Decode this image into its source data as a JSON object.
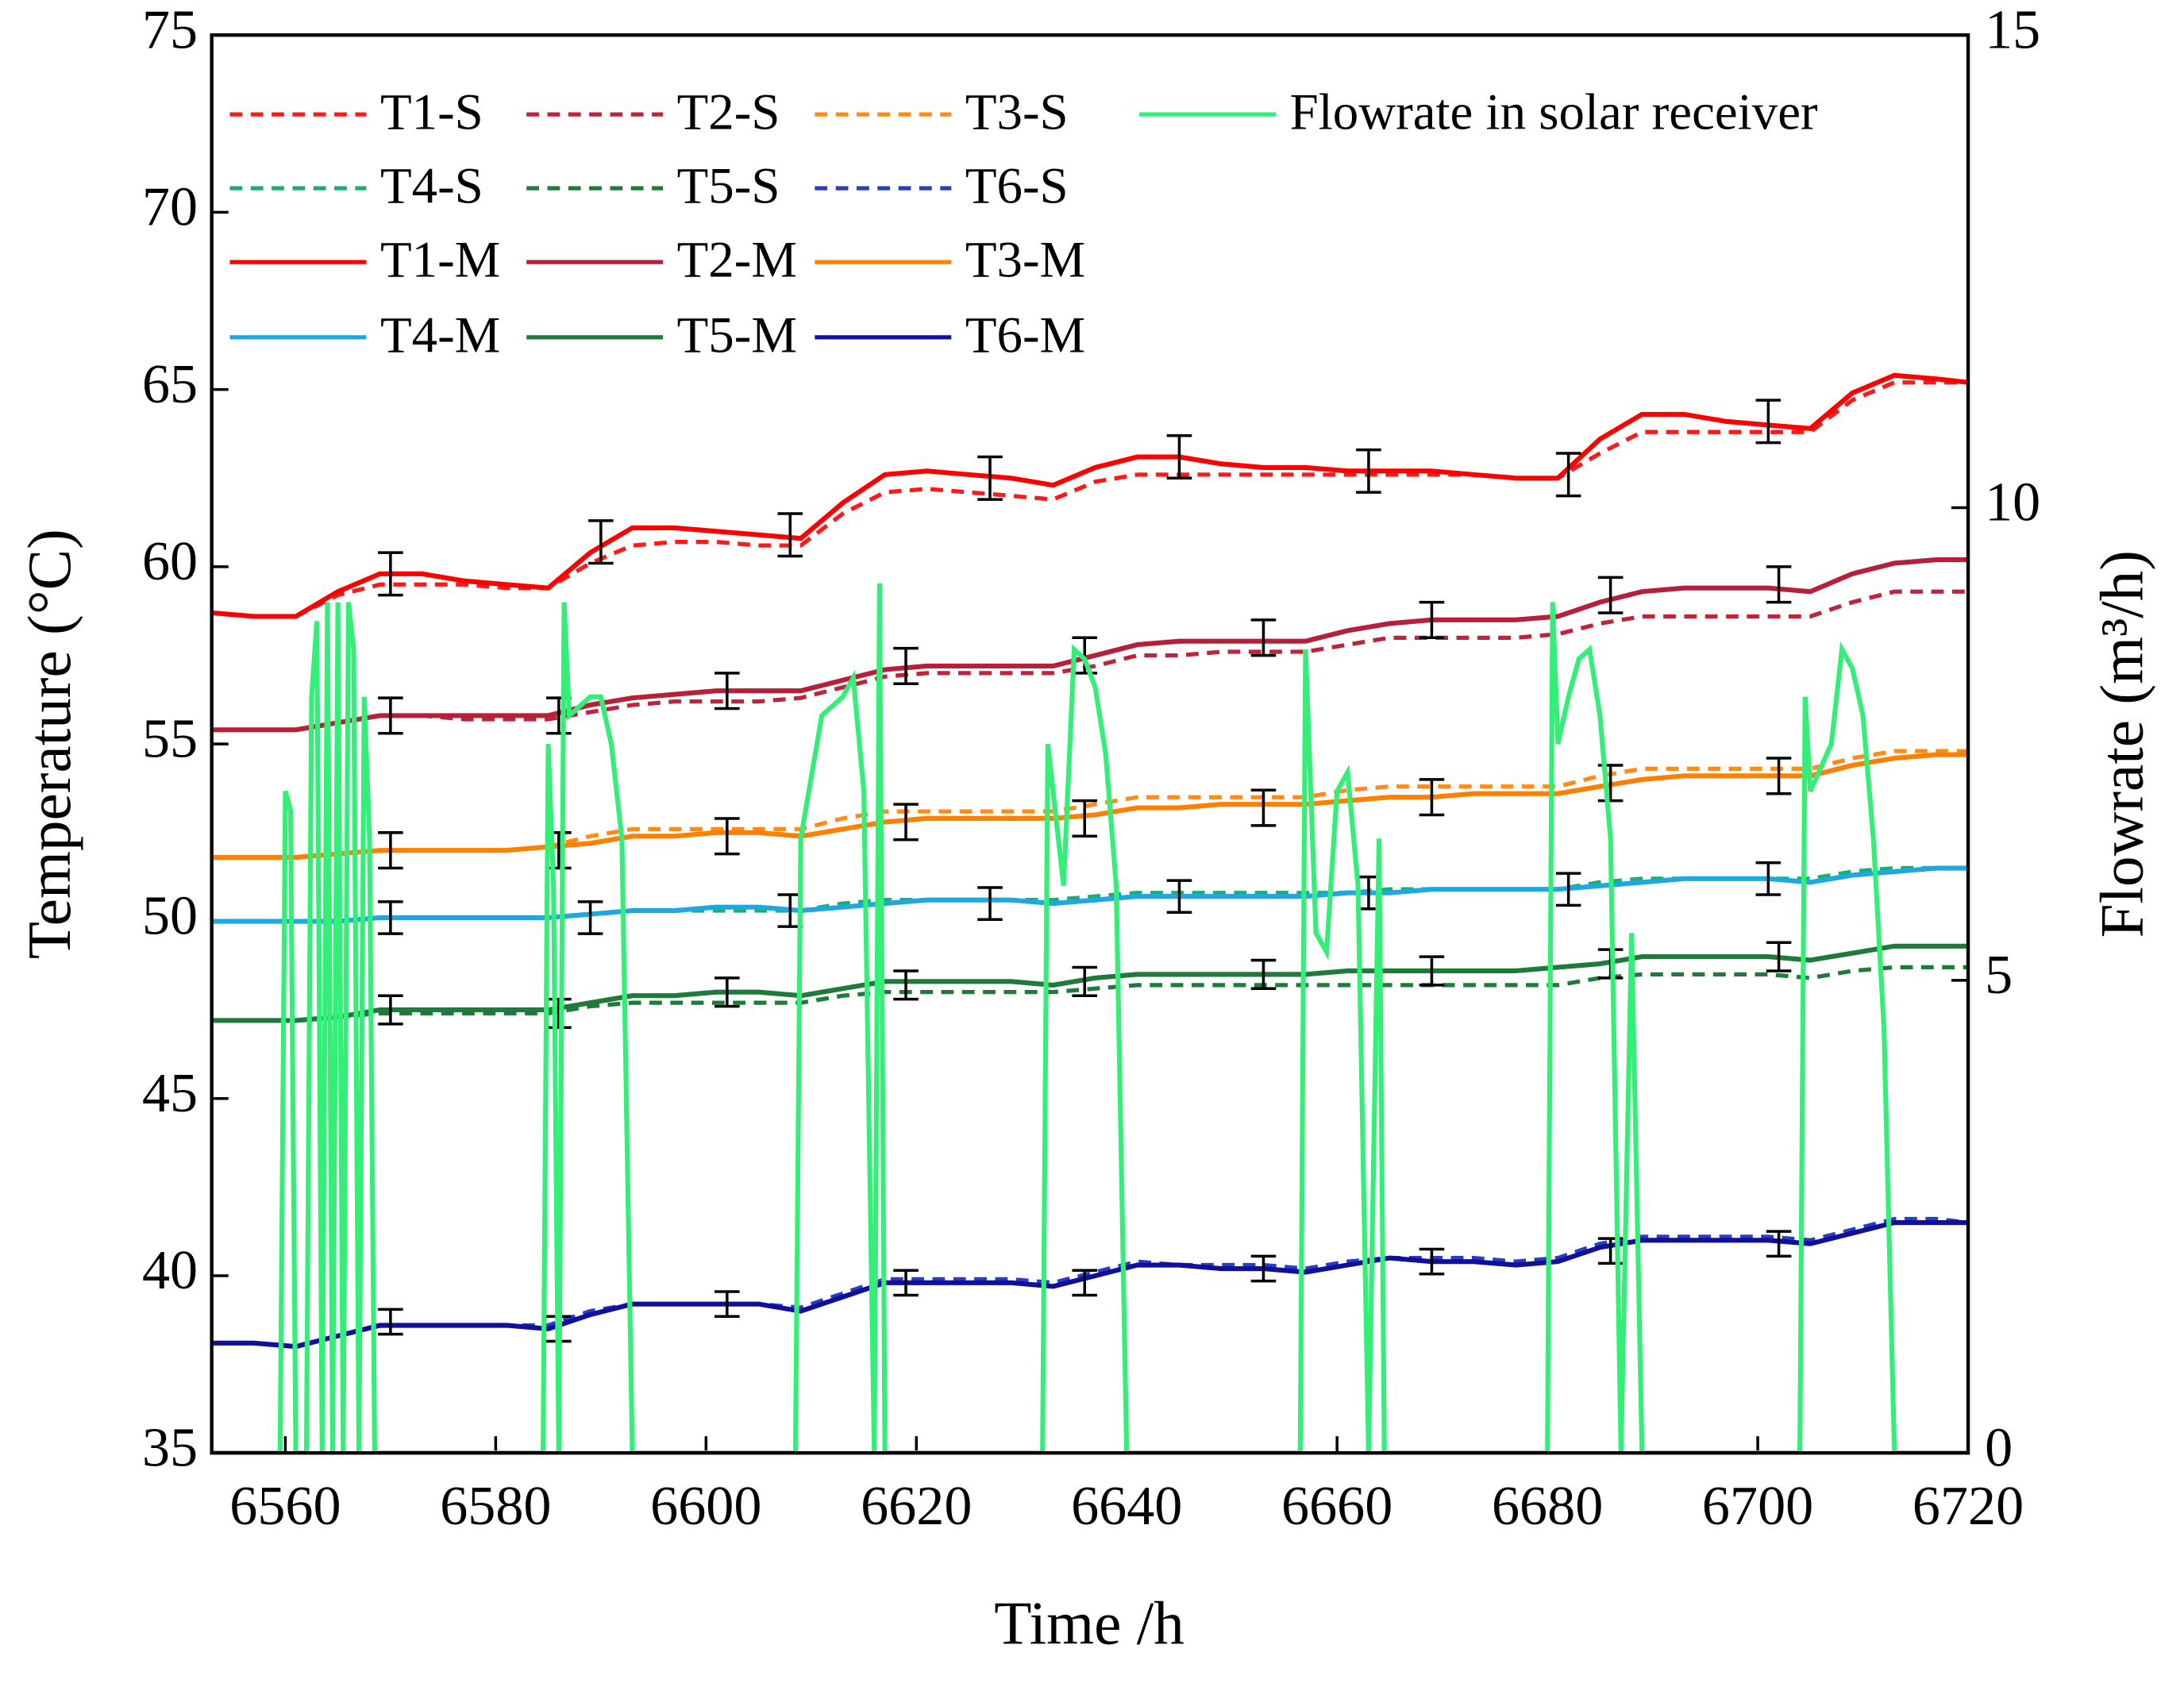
{
  "chart_data": {
    "type": "line",
    "x_label": "Time /h",
    "y_label": "Temperature (°C)",
    "y2_label": "Flowrate (m³/h)",
    "xlim": [
      6553,
      6720
    ],
    "xticks": [
      6560,
      6580,
      6600,
      6620,
      6640,
      6660,
      6680,
      6700,
      6720
    ],
    "ylim": [
      35,
      75
    ],
    "yticks": [
      35,
      40,
      45,
      50,
      55,
      60,
      65,
      70,
      75
    ],
    "y2lim": [
      0,
      15
    ],
    "y2ticks": [
      0,
      5,
      10,
      15
    ],
    "legend": "top-left",
    "x": [
      6553,
      6557,
      6561,
      6565,
      6569,
      6573,
      6577,
      6581,
      6585,
      6589,
      6593,
      6597,
      6601,
      6605,
      6609,
      6613,
      6617,
      6621,
      6625,
      6629,
      6633,
      6637,
      6641,
      6645,
      6649,
      6653,
      6657,
      6661,
      6665,
      6669,
      6673,
      6677,
      6681,
      6685,
      6689,
      6693,
      6697,
      6701,
      6705,
      6709,
      6713,
      6717,
      6720
    ],
    "series": [
      {
        "name": "T1-S",
        "color": "#ff1a1a",
        "style": "dashed",
        "values": [
          58.7,
          58.6,
          58.6,
          59.2,
          59.5,
          59.5,
          59.5,
          59.4,
          59.4,
          60.1,
          60.6,
          60.7,
          60.7,
          60.6,
          60.6,
          61.5,
          62.1,
          62.2,
          62.1,
          62.0,
          61.9,
          62.4,
          62.6,
          62.6,
          62.6,
          62.6,
          62.6,
          62.6,
          62.6,
          62.6,
          62.6,
          62.5,
          62.5,
          63.2,
          63.8,
          63.8,
          63.8,
          63.8,
          63.8,
          64.7,
          65.2,
          65.2,
          65.2
        ]
      },
      {
        "name": "T2-S",
        "color": "#c0243a",
        "style": "dashed",
        "values": [
          55.4,
          55.4,
          55.4,
          55.6,
          55.8,
          55.8,
          55.7,
          55.7,
          55.7,
          55.9,
          56.1,
          56.2,
          56.2,
          56.2,
          56.3,
          56.6,
          56.9,
          57.0,
          57.0,
          57.0,
          57.0,
          57.2,
          57.5,
          57.5,
          57.6,
          57.6,
          57.6,
          57.8,
          58.0,
          58.0,
          58.0,
          58.0,
          58.1,
          58.4,
          58.6,
          58.6,
          58.6,
          58.6,
          58.6,
          59.0,
          59.3,
          59.3,
          59.3
        ]
      },
      {
        "name": "T3-S",
        "color": "#ff8c1a",
        "style": "dashed",
        "values": [
          51.8,
          51.8,
          51.8,
          51.9,
          52.0,
          52.0,
          52.0,
          52.0,
          52.1,
          52.4,
          52.6,
          52.6,
          52.6,
          52.6,
          52.6,
          52.9,
          53.1,
          53.1,
          53.1,
          53.1,
          53.1,
          53.3,
          53.5,
          53.5,
          53.5,
          53.5,
          53.5,
          53.7,
          53.8,
          53.8,
          53.8,
          53.8,
          53.8,
          54.1,
          54.3,
          54.3,
          54.3,
          54.3,
          54.3,
          54.6,
          54.8,
          54.8,
          54.8
        ]
      },
      {
        "name": "T4-S",
        "color": "#1aaf6c",
        "style": "dashed",
        "values": [
          50.0,
          50.0,
          50.0,
          50.0,
          50.1,
          50.1,
          50.1,
          50.1,
          50.1,
          50.2,
          50.3,
          50.3,
          50.3,
          50.3,
          50.3,
          50.5,
          50.6,
          50.6,
          50.6,
          50.6,
          50.6,
          50.7,
          50.8,
          50.8,
          50.8,
          50.8,
          50.8,
          50.8,
          50.9,
          50.9,
          50.9,
          50.9,
          50.9,
          51.1,
          51.2,
          51.2,
          51.2,
          51.2,
          51.2,
          51.4,
          51.5,
          51.5,
          51.5
        ]
      },
      {
        "name": "T5-S",
        "color": "#1e7b3a",
        "style": "dashed",
        "values": [
          47.2,
          47.2,
          47.2,
          47.3,
          47.4,
          47.4,
          47.4,
          47.4,
          47.4,
          47.6,
          47.7,
          47.7,
          47.7,
          47.7,
          47.7,
          47.9,
          48.0,
          48.0,
          48.0,
          48.0,
          48.0,
          48.1,
          48.2,
          48.2,
          48.2,
          48.2,
          48.2,
          48.2,
          48.2,
          48.2,
          48.2,
          48.2,
          48.2,
          48.4,
          48.5,
          48.5,
          48.5,
          48.5,
          48.4,
          48.6,
          48.7,
          48.7,
          48.7
        ]
      },
      {
        "name": "T6-S",
        "color": "#2a3fc0",
        "style": "dashed",
        "values": [
          38.1,
          38.1,
          38.0,
          38.3,
          38.6,
          38.6,
          38.6,
          38.6,
          38.6,
          39.0,
          39.2,
          39.2,
          39.2,
          39.2,
          39.1,
          39.5,
          39.9,
          39.9,
          39.9,
          39.9,
          39.8,
          40.1,
          40.4,
          40.3,
          40.3,
          40.3,
          40.2,
          40.4,
          40.5,
          40.5,
          40.5,
          40.4,
          40.5,
          40.9,
          41.1,
          41.1,
          41.1,
          41.1,
          41.0,
          41.3,
          41.6,
          41.6,
          41.5
        ]
      },
      {
        "name": "T1-M",
        "color": "#ff0000",
        "style": "solid",
        "values": [
          58.7,
          58.6,
          58.6,
          59.3,
          59.8,
          59.8,
          59.6,
          59.5,
          59.4,
          60.4,
          61.1,
          61.1,
          61.0,
          60.9,
          60.8,
          61.8,
          62.6,
          62.7,
          62.6,
          62.5,
          62.3,
          62.8,
          63.1,
          63.1,
          62.9,
          62.8,
          62.8,
          62.7,
          62.7,
          62.7,
          62.6,
          62.5,
          62.5,
          63.6,
          64.3,
          64.3,
          64.1,
          64.0,
          63.9,
          64.9,
          65.4,
          65.3,
          65.2
        ],
        "errorbar": {
          "x": [
            6570,
            6590,
            6608,
            6627,
            6645,
            6663,
            6682,
            6701
          ],
          "values": [
            59.8,
            60.7,
            60.9,
            62.5,
            63.1,
            62.7,
            62.6,
            64.1
          ],
          "error": 0.6
        }
      },
      {
        "name": "T2-M",
        "color": "#b5203a",
        "style": "solid",
        "values": [
          55.4,
          55.4,
          55.4,
          55.6,
          55.8,
          55.8,
          55.8,
          55.8,
          55.8,
          56.1,
          56.3,
          56.4,
          56.5,
          56.5,
          56.5,
          56.8,
          57.1,
          57.2,
          57.2,
          57.2,
          57.2,
          57.5,
          57.8,
          57.9,
          57.9,
          57.9,
          57.9,
          58.2,
          58.4,
          58.5,
          58.5,
          58.5,
          58.6,
          59.0,
          59.3,
          59.4,
          59.4,
          59.4,
          59.3,
          59.8,
          60.1,
          60.2,
          60.2
        ],
        "errorbar": {
          "x": [
            6570,
            6586,
            6602,
            6619,
            6636,
            6653,
            6669,
            6686,
            6702
          ],
          "values": [
            55.8,
            55.8,
            56.5,
            57.2,
            57.5,
            58.0,
            58.5,
            59.2,
            59.5
          ],
          "error": 0.5
        }
      },
      {
        "name": "T3-M",
        "color": "#ff8000",
        "style": "solid",
        "values": [
          51.8,
          51.8,
          51.8,
          51.9,
          52.0,
          52.0,
          52.0,
          52.0,
          52.1,
          52.2,
          52.4,
          52.4,
          52.5,
          52.5,
          52.4,
          52.6,
          52.8,
          52.9,
          52.9,
          52.9,
          52.9,
          53.0,
          53.2,
          53.2,
          53.3,
          53.3,
          53.3,
          53.4,
          53.5,
          53.5,
          53.6,
          53.6,
          53.6,
          53.8,
          54.0,
          54.1,
          54.1,
          54.1,
          54.1,
          54.4,
          54.6,
          54.7,
          54.7
        ],
        "errorbar": {
          "x": [
            6570,
            6586,
            6602,
            6619,
            6636,
            6653,
            6669,
            6686,
            6702
          ],
          "values": [
            52.0,
            52.0,
            52.4,
            52.8,
            52.9,
            53.2,
            53.5,
            53.9,
            54.1
          ],
          "error": 0.5
        }
      },
      {
        "name": "T4-M",
        "color": "#1fa8e0",
        "style": "solid",
        "values": [
          50.0,
          50.0,
          50.0,
          50.0,
          50.1,
          50.1,
          50.1,
          50.1,
          50.1,
          50.2,
          50.3,
          50.3,
          50.4,
          50.4,
          50.3,
          50.4,
          50.5,
          50.6,
          50.6,
          50.6,
          50.5,
          50.6,
          50.7,
          50.7,
          50.7,
          50.7,
          50.7,
          50.8,
          50.8,
          50.9,
          50.9,
          50.9,
          50.9,
          51.0,
          51.1,
          51.2,
          51.2,
          51.2,
          51.1,
          51.3,
          51.4,
          51.5,
          51.5
        ],
        "errorbar": {
          "x": [
            6570,
            6589,
            6608,
            6627,
            6645,
            6663,
            6682,
            6701
          ],
          "values": [
            50.1,
            50.1,
            50.3,
            50.5,
            50.7,
            50.8,
            50.9,
            51.2
          ],
          "error": 0.45
        }
      },
      {
        "name": "T5-M",
        "color": "#1f7a3c",
        "style": "solid",
        "values": [
          47.2,
          47.2,
          47.2,
          47.3,
          47.5,
          47.5,
          47.5,
          47.5,
          47.5,
          47.7,
          47.9,
          47.9,
          48.0,
          48.0,
          47.9,
          48.1,
          48.3,
          48.3,
          48.3,
          48.3,
          48.2,
          48.4,
          48.5,
          48.5,
          48.5,
          48.5,
          48.5,
          48.6,
          48.6,
          48.6,
          48.6,
          48.6,
          48.7,
          48.8,
          49.0,
          49.0,
          49.0,
          49.0,
          48.9,
          49.1,
          49.3,
          49.3,
          49.3
        ],
        "errorbar": {
          "x": [
            6570,
            6586,
            6602,
            6619,
            6636,
            6653,
            6669,
            6686,
            6702
          ],
          "values": [
            47.5,
            47.4,
            48.0,
            48.2,
            48.3,
            48.5,
            48.6,
            48.8,
            49.0
          ],
          "error": 0.4
        }
      },
      {
        "name": "T6-M",
        "color": "#10109c",
        "style": "solid",
        "values": [
          38.1,
          38.1,
          38.0,
          38.3,
          38.6,
          38.6,
          38.6,
          38.6,
          38.5,
          38.9,
          39.2,
          39.2,
          39.2,
          39.2,
          39.0,
          39.4,
          39.8,
          39.8,
          39.8,
          39.8,
          39.7,
          40.0,
          40.3,
          40.3,
          40.2,
          40.2,
          40.1,
          40.3,
          40.5,
          40.4,
          40.4,
          40.3,
          40.4,
          40.8,
          41.0,
          41.0,
          41.0,
          41.0,
          40.9,
          41.2,
          41.5,
          41.5,
          41.5
        ],
        "errorbar": {
          "x": [
            6570,
            6586,
            6602,
            6619,
            6636,
            6653,
            6669,
            6686,
            6702
          ],
          "values": [
            38.7,
            38.5,
            39.2,
            39.8,
            39.8,
            40.2,
            40.4,
            40.7,
            40.9
          ],
          "error": 0.35
        }
      },
      {
        "name": "Flowrate in solar receiver",
        "color": "#33ee77",
        "style": "solid",
        "axis": "y2",
        "x": [
          6553,
          6559.5,
          6560,
          6560.5,
          6561,
          6562,
          6562.5,
          6563,
          6563.5,
          6564,
          6564.5,
          6565,
          6565.5,
          6566,
          6566.5,
          6567,
          6567.5,
          6568,
          6568.5,
          6584.5,
          6585,
          6585.5,
          6586,
          6586.5,
          6587,
          6589,
          6590,
          6591,
          6592,
          6593,
          6608.5,
          6609,
          6611,
          6613,
          6614,
          6615,
          6616,
          6616.5,
          6617,
          6632,
          6632.5,
          6634,
          6635,
          6636,
          6637,
          6638,
          6639,
          6640,
          6656.5,
          6657,
          6658,
          6659,
          6660,
          6661,
          6662,
          6663,
          6664,
          6664.5,
          6680,
          6680.5,
          6681,
          6682,
          6683,
          6684,
          6685,
          6686,
          6687,
          6688,
          6689,
          6704,
          6704.5,
          6705,
          6707,
          6708,
          6709,
          6710,
          6711,
          6712,
          6713,
          6720
        ],
        "values": [
          0,
          0,
          7.0,
          6.8,
          0,
          0,
          8.0,
          8.8,
          0,
          9.0,
          0,
          9.0,
          0,
          9.0,
          8.5,
          0,
          8.0,
          6.5,
          0,
          0,
          7.5,
          6.0,
          0,
          9.0,
          7.8,
          8.0,
          8.0,
          7.5,
          6.5,
          0,
          0,
          6.5,
          7.8,
          8.0,
          8.2,
          7.0,
          0,
          9.2,
          0,
          0,
          7.5,
          6.0,
          8.5,
          8.4,
          8.1,
          7.4,
          6.0,
          0,
          0,
          8.5,
          5.5,
          5.3,
          7.0,
          7.2,
          6.0,
          0,
          6.5,
          0,
          0,
          9.0,
          7.5,
          8.0,
          8.4,
          8.5,
          7.8,
          6.5,
          0,
          5.5,
          0,
          0,
          8.0,
          7.0,
          7.5,
          8.5,
          8.3,
          7.8,
          6.5,
          4.5,
          0,
          0
        ]
      }
    ]
  }
}
